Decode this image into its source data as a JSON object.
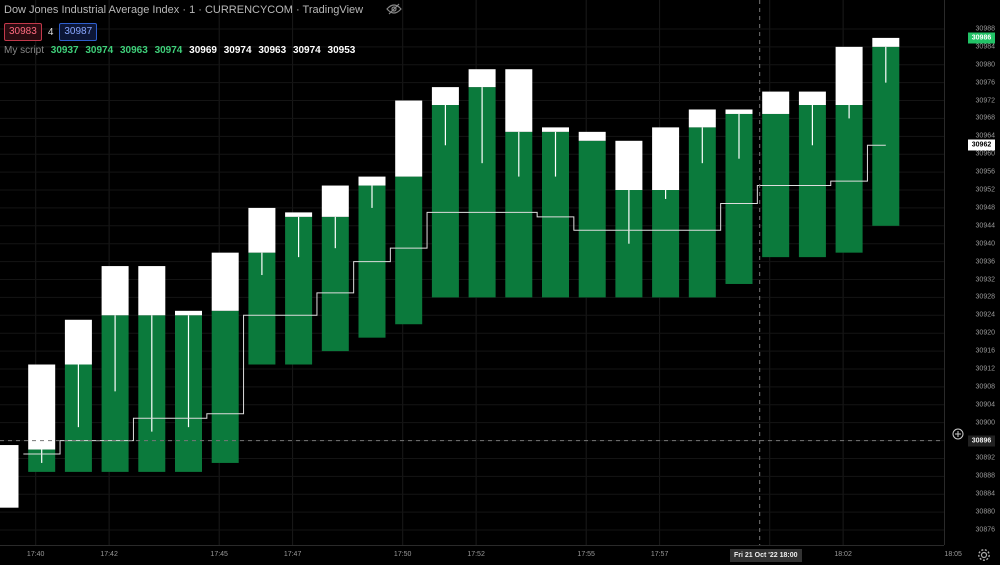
{
  "header": {
    "title": "Dow Jones Industrial Average Index · 1 · CURRENCYCOM · TradingView",
    "sell_price": "30983",
    "spread": "4",
    "buy_price": "30987"
  },
  "script": {
    "name": "My script",
    "values": [
      {
        "text": "30937",
        "color": "green"
      },
      {
        "text": "30974",
        "color": "green"
      },
      {
        "text": "30963",
        "color": "green"
      },
      {
        "text": "30974",
        "color": "green"
      },
      {
        "text": "30969",
        "color": "white"
      },
      {
        "text": "30974",
        "color": "white"
      },
      {
        "text": "30963",
        "color": "white"
      },
      {
        "text": "30974",
        "color": "white"
      },
      {
        "text": "30953",
        "color": "white"
      }
    ]
  },
  "price_axis": {
    "ticks": [
      "30988",
      "30984",
      "30980",
      "30976",
      "30972",
      "30968",
      "30964",
      "30960",
      "30956",
      "30952",
      "30948",
      "30944",
      "30940",
      "30936",
      "30932",
      "30928",
      "30924",
      "30920",
      "30916",
      "30912",
      "30908",
      "30904",
      "30900",
      "30896",
      "30892",
      "30888",
      "30884",
      "30880",
      "30876"
    ],
    "current_price": "30986",
    "script_price": "30962",
    "cursor_price": "30896"
  },
  "time_axis": {
    "labels": [
      "17:40",
      "17:42",
      "17:45",
      "17:47",
      "17:50",
      "17:52",
      "17:55",
      "17:57",
      "18:00",
      "18:02",
      "18:05"
    ],
    "cursor_label": "Fri 21 Oct '22  18:00"
  },
  "colors": {
    "background": "#000000",
    "green_bar": "#0b7a3c",
    "white_bar": "#ffffff",
    "accent_green": "#22c266"
  },
  "chart_data": {
    "type": "bar",
    "ylim": [
      30874,
      30990
    ],
    "x_unit": "minutes past 17:37",
    "bars": [
      {
        "x": 0,
        "green": null,
        "white": [
          30881,
          30895
        ]
      },
      {
        "x": 1,
        "green": [
          30889,
          30894
        ],
        "white": [
          30894,
          30913
        ]
      },
      {
        "x": 2,
        "green": [
          30889,
          30913
        ],
        "white": [
          30913,
          30923
        ]
      },
      {
        "x": 3,
        "green": [
          30889,
          30924
        ],
        "white": [
          30924,
          30935
        ]
      },
      {
        "x": 4,
        "green": [
          30889,
          30924
        ],
        "white": [
          30924,
          30935
        ]
      },
      {
        "x": 5,
        "green": [
          30889,
          30924
        ],
        "white": [
          30924,
          30925
        ]
      },
      {
        "x": 6,
        "green": [
          30891,
          30925
        ],
        "white": [
          30925,
          30938
        ]
      },
      {
        "x": 7,
        "green": [
          30913,
          30938
        ],
        "white": [
          30938,
          30948
        ]
      },
      {
        "x": 8,
        "green": [
          30913,
          30946
        ],
        "white": [
          30946,
          30947
        ]
      },
      {
        "x": 9,
        "green": [
          30916,
          30946
        ],
        "white": [
          30946,
          30953
        ]
      },
      {
        "x": 10,
        "green": [
          30919,
          30953
        ],
        "white": [
          30953,
          30955
        ]
      },
      {
        "x": 11,
        "green": [
          30922,
          30955
        ],
        "white": [
          30955,
          30972
        ]
      },
      {
        "x": 12,
        "green": [
          30928,
          30971
        ],
        "white": [
          30971,
          30975
        ]
      },
      {
        "x": 13,
        "green": [
          30928,
          30975
        ],
        "white": [
          30975,
          30979
        ]
      },
      {
        "x": 14,
        "green": [
          30928,
          30965
        ],
        "white": [
          30965,
          30979
        ]
      },
      {
        "x": 15,
        "green": [
          30928,
          30965
        ],
        "white": [
          30965,
          30966
        ]
      },
      {
        "x": 16,
        "green": [
          30928,
          30963
        ],
        "white": [
          30963,
          30965
        ]
      },
      {
        "x": 17,
        "green": [
          30928,
          30952
        ],
        "white": [
          30952,
          30963
        ]
      },
      {
        "x": 18,
        "green": [
          30928,
          30952
        ],
        "white": [
          30952,
          30966
        ]
      },
      {
        "x": 19,
        "green": [
          30928,
          30966
        ],
        "white": [
          30966,
          30970
        ]
      },
      {
        "x": 20,
        "green": [
          30931,
          30969
        ],
        "white": [
          30969,
          30970
        ]
      },
      {
        "x": 21,
        "green": [
          30937,
          30969
        ],
        "white": [
          30969,
          30974
        ]
      },
      {
        "x": 22,
        "green": [
          30937,
          30971
        ],
        "white": [
          30971,
          30974
        ]
      },
      {
        "x": 23,
        "green": [
          30938,
          30971
        ],
        "white": [
          30971,
          30984
        ]
      },
      {
        "x": 24,
        "green": [
          30944,
          30984
        ],
        "white": [
          30984,
          30986
        ]
      }
    ],
    "wicks": [
      {
        "x": 1,
        "y": [
          30891,
          30894
        ]
      },
      {
        "x": 2,
        "y": [
          30899,
          30913
        ]
      },
      {
        "x": 3,
        "y": [
          30907,
          30924
        ]
      },
      {
        "x": 4,
        "y": [
          30898,
          30924
        ]
      },
      {
        "x": 5,
        "y": [
          30899,
          30924
        ]
      },
      {
        "x": 7,
        "y": [
          30933,
          30938
        ]
      },
      {
        "x": 8,
        "y": [
          30937,
          30946
        ]
      },
      {
        "x": 9,
        "y": [
          30939,
          30946
        ]
      },
      {
        "x": 10,
        "y": [
          30948,
          30953
        ]
      },
      {
        "x": 12,
        "y": [
          30962,
          30971
        ]
      },
      {
        "x": 13,
        "y": [
          30958,
          30975
        ]
      },
      {
        "x": 14,
        "y": [
          30955,
          30965
        ]
      },
      {
        "x": 15,
        "y": [
          30955,
          30965
        ]
      },
      {
        "x": 17,
        "y": [
          30940,
          30952
        ]
      },
      {
        "x": 18,
        "y": [
          30950,
          30952
        ]
      },
      {
        "x": 19,
        "y": [
          30958,
          30966
        ]
      },
      {
        "x": 20,
        "y": [
          30959,
          30969
        ]
      },
      {
        "x": 22,
        "y": [
          30962,
          30971
        ]
      },
      {
        "x": 23,
        "y": [
          30968,
          30971
        ]
      },
      {
        "x": 24,
        "y": [
          30976,
          30984
        ]
      }
    ],
    "step_line": [
      {
        "x": 0.5,
        "y": 30893
      },
      {
        "x": 1.5,
        "y": 30896
      },
      {
        "x": 3.5,
        "y": 30901
      },
      {
        "x": 5.5,
        "y": 30902
      },
      {
        "x": 6.5,
        "y": 30924
      },
      {
        "x": 8.5,
        "y": 30929
      },
      {
        "x": 9.5,
        "y": 30936
      },
      {
        "x": 10.5,
        "y": 30939
      },
      {
        "x": 11.5,
        "y": 30947
      },
      {
        "x": 14.5,
        "y": 30946
      },
      {
        "x": 15.5,
        "y": 30943
      },
      {
        "x": 19.5,
        "y": 30949
      },
      {
        "x": 20.5,
        "y": 30953
      },
      {
        "x": 22.5,
        "y": 30954
      },
      {
        "x": 23.5,
        "y": 30962
      },
      {
        "x": 24,
        "y": 30962
      }
    ],
    "cursor": {
      "x": 20.7,
      "y": 30896
    }
  }
}
